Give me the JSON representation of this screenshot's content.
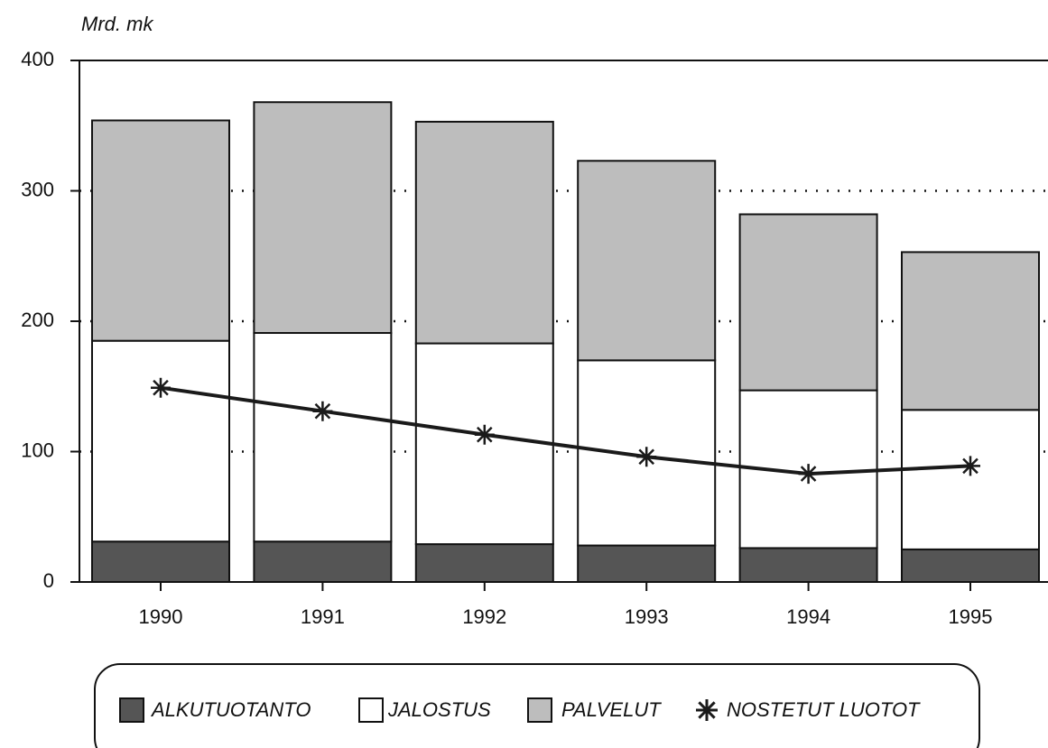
{
  "chart_data": {
    "type": "bar",
    "stacked": true,
    "y_label": "Mrd. mk",
    "categories": [
      "1990",
      "1991",
      "1992",
      "1993",
      "1994",
      "1995"
    ],
    "series": [
      {
        "name": "ALKUTUOTANTO",
        "color": "#555555",
        "values": [
          31,
          31,
          29,
          28,
          26,
          25
        ]
      },
      {
        "name": "JALOSTUS",
        "color": "#ffffff",
        "values": [
          154,
          160,
          154,
          142,
          121,
          107
        ]
      },
      {
        "name": "PALVELUT",
        "color": "#bdbdbd",
        "values": [
          169,
          177,
          170,
          153,
          135,
          121
        ]
      },
      {
        "name": "NOSTETUT LUOTOT",
        "type": "line",
        "color": "#1a1a1a",
        "values": [
          149,
          131,
          113,
          96,
          83,
          89
        ]
      }
    ],
    "ylim": [
      0,
      400
    ],
    "yticks": [
      0,
      100,
      200,
      300,
      400
    ],
    "grid": true,
    "legend": "bottom"
  }
}
